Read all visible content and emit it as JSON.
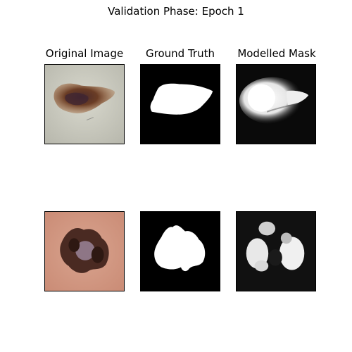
{
  "figure": {
    "title": "Validation Phase: Epoch 1",
    "column_titles": [
      "Original Image",
      "Ground Truth",
      "Modelled Mask"
    ],
    "rows": [
      {
        "original": "skin-lesion-photo-1",
        "ground_truth": "binary-mask-1",
        "modelled_mask": "predicted-mask-1"
      },
      {
        "original": "skin-lesion-photo-2",
        "ground_truth": "binary-mask-2",
        "modelled_mask": "predicted-mask-2"
      }
    ],
    "colors": {
      "mask_background": "#000000",
      "mask_foreground": "#ffffff",
      "row1_skin": "#cfcfc4",
      "row1_lesion": "#7a4a2a",
      "row2_skin": "#d79a86",
      "row2_lesion": "#3a1f18"
    }
  }
}
